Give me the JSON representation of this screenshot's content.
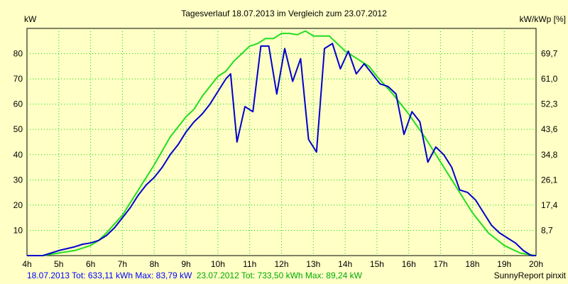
{
  "chart_data": {
    "type": "line",
    "title": "Tagesverlauf 18.07.2013 im Vergleich zum 23.07.2012",
    "y_left_label": "kW",
    "y_right_label": "kW/kWp [%]",
    "x_range": [
      4,
      20
    ],
    "y_range": [
      0,
      90
    ],
    "grid": true,
    "x_ticks": [
      {
        "x": 4,
        "label": "4h"
      },
      {
        "x": 5,
        "label": "5h"
      },
      {
        "x": 6,
        "label": "6h"
      },
      {
        "x": 7,
        "label": "7h"
      },
      {
        "x": 8,
        "label": "8h"
      },
      {
        "x": 9,
        "label": "9h"
      },
      {
        "x": 10,
        "label": "10h"
      },
      {
        "x": 11,
        "label": "11h"
      },
      {
        "x": 12,
        "label": "12h"
      },
      {
        "x": 13,
        "label": "13h"
      },
      {
        "x": 14,
        "label": "14h"
      },
      {
        "x": 15,
        "label": "15h"
      },
      {
        "x": 16,
        "label": "16h"
      },
      {
        "x": 17,
        "label": "17h"
      },
      {
        "x": 18,
        "label": "18h"
      },
      {
        "x": 19,
        "label": "19h"
      },
      {
        "x": 20,
        "label": "20h"
      }
    ],
    "y_ticks_left": [
      {
        "y": 10,
        "label": "10"
      },
      {
        "y": 20,
        "label": "20"
      },
      {
        "y": 30,
        "label": "30"
      },
      {
        "y": 40,
        "label": "40"
      },
      {
        "y": 50,
        "label": "50"
      },
      {
        "y": 60,
        "label": "60"
      },
      {
        "y": 70,
        "label": "70"
      },
      {
        "y": 80,
        "label": "80"
      }
    ],
    "y_ticks_right": [
      {
        "y": 10,
        "label": "8,7"
      },
      {
        "y": 20,
        "label": "17,4"
      },
      {
        "y": 30,
        "label": "26,1"
      },
      {
        "y": 40,
        "label": "34,8"
      },
      {
        "y": 50,
        "label": "43,6"
      },
      {
        "y": 60,
        "label": "52,3"
      },
      {
        "y": 70,
        "label": "61,0"
      },
      {
        "y": 80,
        "label": "69,7"
      }
    ],
    "series": [
      {
        "color": "#22dd22",
        "points": [
          [
            4,
            0
          ],
          [
            4.5,
            0
          ],
          [
            5,
            1
          ],
          [
            5.5,
            2
          ],
          [
            6,
            4
          ],
          [
            6.25,
            6
          ],
          [
            6.5,
            9
          ],
          [
            7,
            16
          ],
          [
            7.5,
            26
          ],
          [
            8,
            36
          ],
          [
            8.5,
            47
          ],
          [
            9,
            55
          ],
          [
            9.25,
            58
          ],
          [
            9.5,
            63
          ],
          [
            9.75,
            67
          ],
          [
            10,
            71
          ],
          [
            10.25,
            73
          ],
          [
            10.5,
            77
          ],
          [
            10.75,
            80
          ],
          [
            11,
            83
          ],
          [
            11.25,
            84
          ],
          [
            11.5,
            86
          ],
          [
            11.75,
            86
          ],
          [
            12,
            88
          ],
          [
            12.25,
            88
          ],
          [
            12.5,
            87.5
          ],
          [
            12.75,
            89
          ],
          [
            13,
            87
          ],
          [
            13.25,
            87
          ],
          [
            13.5,
            87
          ],
          [
            13.75,
            84
          ],
          [
            14,
            81
          ],
          [
            14.5,
            77
          ],
          [
            14.75,
            75
          ],
          [
            15,
            71
          ],
          [
            15.5,
            64
          ],
          [
            16,
            56
          ],
          [
            16.5,
            47
          ],
          [
            17,
            37
          ],
          [
            17.5,
            27
          ],
          [
            18,
            17
          ],
          [
            18.5,
            9
          ],
          [
            19,
            4
          ],
          [
            19.5,
            1
          ],
          [
            20,
            0
          ]
        ]
      },
      {
        "color": "#0000cc",
        "points": [
          [
            4,
            0
          ],
          [
            4.5,
            0
          ],
          [
            5,
            2
          ],
          [
            5.5,
            3.5
          ],
          [
            5.75,
            4.5
          ],
          [
            6,
            5
          ],
          [
            6.25,
            6
          ],
          [
            6.5,
            8
          ],
          [
            6.75,
            11
          ],
          [
            7,
            15
          ],
          [
            7.25,
            19
          ],
          [
            7.5,
            24
          ],
          [
            7.75,
            28
          ],
          [
            8,
            31
          ],
          [
            8.25,
            35
          ],
          [
            8.5,
            40
          ],
          [
            8.75,
            44
          ],
          [
            9,
            49
          ],
          [
            9.25,
            53
          ],
          [
            9.5,
            56
          ],
          [
            9.75,
            60
          ],
          [
            10,
            65
          ],
          [
            10.25,
            70
          ],
          [
            10.4,
            72
          ],
          [
            10.6,
            45
          ],
          [
            10.85,
            59
          ],
          [
            11.1,
            57
          ],
          [
            11.35,
            83
          ],
          [
            11.6,
            83
          ],
          [
            11.85,
            64
          ],
          [
            12.1,
            82
          ],
          [
            12.35,
            69
          ],
          [
            12.6,
            78
          ],
          [
            12.85,
            46
          ],
          [
            13.1,
            41
          ],
          [
            13.35,
            82
          ],
          [
            13.6,
            84
          ],
          [
            13.85,
            74
          ],
          [
            14.1,
            81
          ],
          [
            14.35,
            72
          ],
          [
            14.6,
            76
          ],
          [
            14.85,
            72
          ],
          [
            15.1,
            68
          ],
          [
            15.35,
            67
          ],
          [
            15.6,
            64
          ],
          [
            15.85,
            48
          ],
          [
            16.1,
            57
          ],
          [
            16.35,
            53
          ],
          [
            16.6,
            37
          ],
          [
            16.85,
            43
          ],
          [
            17.1,
            40
          ],
          [
            17.35,
            35
          ],
          [
            17.6,
            26
          ],
          [
            17.85,
            25
          ],
          [
            18.1,
            22
          ],
          [
            18.35,
            17
          ],
          [
            18.6,
            12
          ],
          [
            18.85,
            9
          ],
          [
            19.1,
            7
          ],
          [
            19.35,
            5
          ],
          [
            19.6,
            2
          ],
          [
            19.85,
            0
          ],
          [
            20,
            0
          ]
        ]
      }
    ]
  },
  "footer": {
    "blue_text": "18.07.2013 Tot: 633,11 kWh Max: 83,79 kW",
    "green_text": "23.07.2012 Tot: 733,50 kWh Max: 89,24 kW",
    "credit": "SunnyReport pinxit"
  }
}
